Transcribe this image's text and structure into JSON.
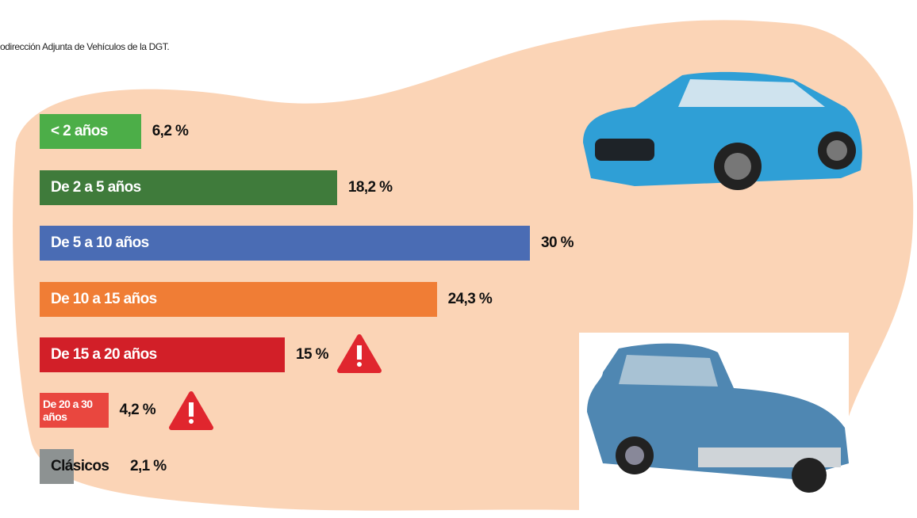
{
  "source": "odirección Adjunta de Vehículos de la DGT.",
  "chart_data": {
    "type": "bar",
    "orientation": "horizontal",
    "categories": [
      "< 2 años",
      "De 2 a 5 años",
      "De 5 a 10 años",
      "De 10 a 15 años",
      "De 15 a 20 años",
      "De 20 a 30 años",
      "Clásicos"
    ],
    "values": [
      6.2,
      18.2,
      30,
      24.3,
      15,
      4.2,
      2.1
    ],
    "value_labels": [
      "6,2 %",
      "18,2 %",
      "30 %",
      "24,3 %",
      "15 %",
      "4,2 %",
      "2,1 %"
    ],
    "colors": [
      "#4cae48",
      "#3f7b3b",
      "#4a6cb4",
      "#f07d35",
      "#d21f28",
      "#e9473f",
      "#8d9292"
    ]
  }
}
